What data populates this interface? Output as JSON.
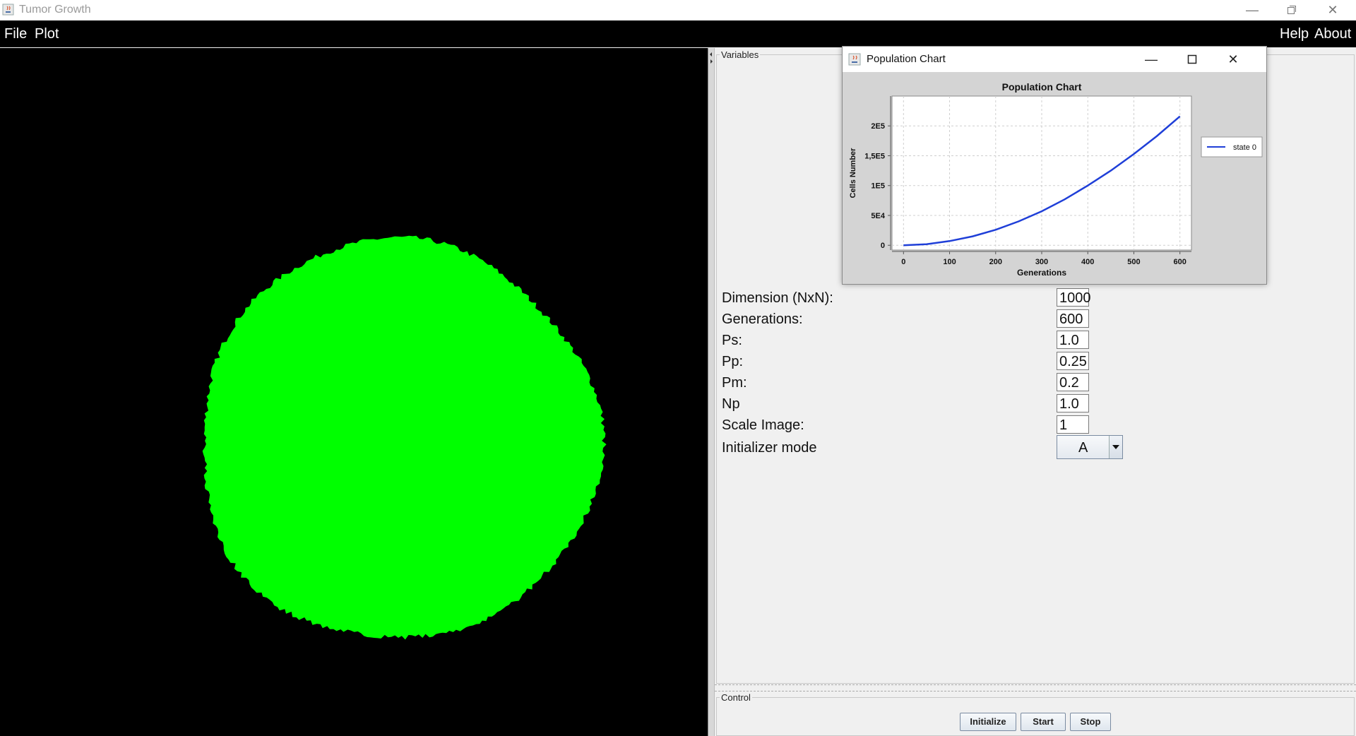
{
  "window": {
    "title": "Tumor Growth",
    "controls": [
      "minimize-icon",
      "restore-icon",
      "close-icon"
    ]
  },
  "menubar": {
    "left": [
      "File",
      "Plot"
    ],
    "right": [
      "Help",
      "About"
    ]
  },
  "simulation": {
    "background_color": "#000000",
    "cell_color": "#00ff00"
  },
  "variables": {
    "legend": "Variables",
    "params": [
      {
        "label": "Dimension (NxN):",
        "value": "1000"
      },
      {
        "label": "Generations:",
        "value": "600"
      },
      {
        "label": "Ps:",
        "value": "1.0"
      },
      {
        "label": "Pp:",
        "value": "0.25"
      },
      {
        "label": "Pm:",
        "value": "0.2"
      },
      {
        "label": "Np",
        "value": "1.0"
      },
      {
        "label": "Scale Image:",
        "value": "1"
      }
    ],
    "initializer": {
      "label": "Initializer mode",
      "value": "A"
    }
  },
  "control": {
    "legend": "Control",
    "buttons": [
      "Initialize",
      "Start",
      "Stop"
    ]
  },
  "chart_window": {
    "title": "Population Chart",
    "controls": [
      "minimize-icon",
      "maximize-icon",
      "close-icon"
    ]
  },
  "chart_data": {
    "type": "line",
    "title": "Population Chart",
    "xlabel": "Generations",
    "ylabel": "Cells Number",
    "x_ticks": [
      "0",
      "100",
      "200",
      "300",
      "400",
      "500",
      "600"
    ],
    "y_ticks": [
      "0",
      "5E4",
      "1E5",
      "1,5E5",
      "2E5"
    ],
    "xlim": [
      -25,
      625
    ],
    "ylim": [
      -8000,
      250000
    ],
    "grid": true,
    "legend_position": "right",
    "series": [
      {
        "name": "state 0",
        "color": "#1f3fd8",
        "x": [
          0,
          50,
          100,
          150,
          200,
          250,
          300,
          350,
          400,
          450,
          500,
          550,
          600
        ],
        "y": [
          0,
          1700,
          7000,
          15000,
          26000,
          40000,
          57000,
          77000,
          100000,
          125000,
          153000,
          183000,
          216000
        ]
      }
    ]
  }
}
